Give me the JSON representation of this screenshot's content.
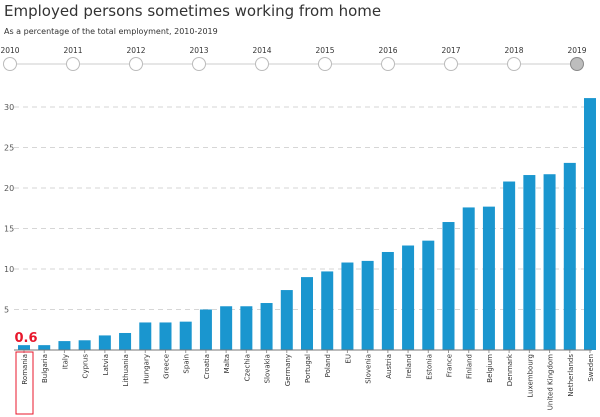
{
  "title": "Employed persons sometimes working from home",
  "subtitle": "As a percentage of the total employment, 2010-2019",
  "timeline": {
    "years": [
      "2010",
      "2011",
      "2012",
      "2013",
      "2014",
      "2015",
      "2016",
      "2017",
      "2018",
      "2019"
    ],
    "selected": "2019"
  },
  "highlight": {
    "category": "Romania",
    "label": "0.6",
    "color": "#e8172b"
  },
  "colors": {
    "bar": "#1a96cf",
    "grid": "#d6d6d6",
    "text": "#333333",
    "axis": "#777777",
    "timeline_track": "#cccccc",
    "selected_dot": "#bdbdbd"
  },
  "chart_data": {
    "type": "bar",
    "title": "",
    "xlabel": "",
    "ylabel": "",
    "ylim": [
      0,
      33
    ],
    "yticks": [
      5,
      10,
      15,
      20,
      25,
      30
    ],
    "grid": true,
    "categories": [
      "Romania",
      "Bulgaria",
      "Italy",
      "Cyprus",
      "Latvia",
      "Lithuania",
      "Hungary",
      "Greece",
      "Spain",
      "Croatia",
      "Malta",
      "Czechia",
      "Slovakia",
      "Germany",
      "Portugal",
      "Poland",
      "EU",
      "Slovenia",
      "Austria",
      "Ireland",
      "Estonia",
      "France",
      "Finland",
      "Belgium",
      "Denmark",
      "Luxembourg",
      "United Kingdom",
      "Netherlands",
      "Sweden"
    ],
    "values": [
      0.6,
      0.6,
      1.1,
      1.2,
      1.8,
      2.1,
      3.4,
      3.4,
      3.5,
      5.0,
      5.4,
      5.4,
      5.8,
      7.4,
      9.0,
      9.7,
      10.8,
      11.0,
      12.1,
      12.9,
      13.5,
      15.8,
      17.6,
      17.7,
      20.8,
      21.6,
      21.7,
      23.1,
      31.1
    ]
  }
}
